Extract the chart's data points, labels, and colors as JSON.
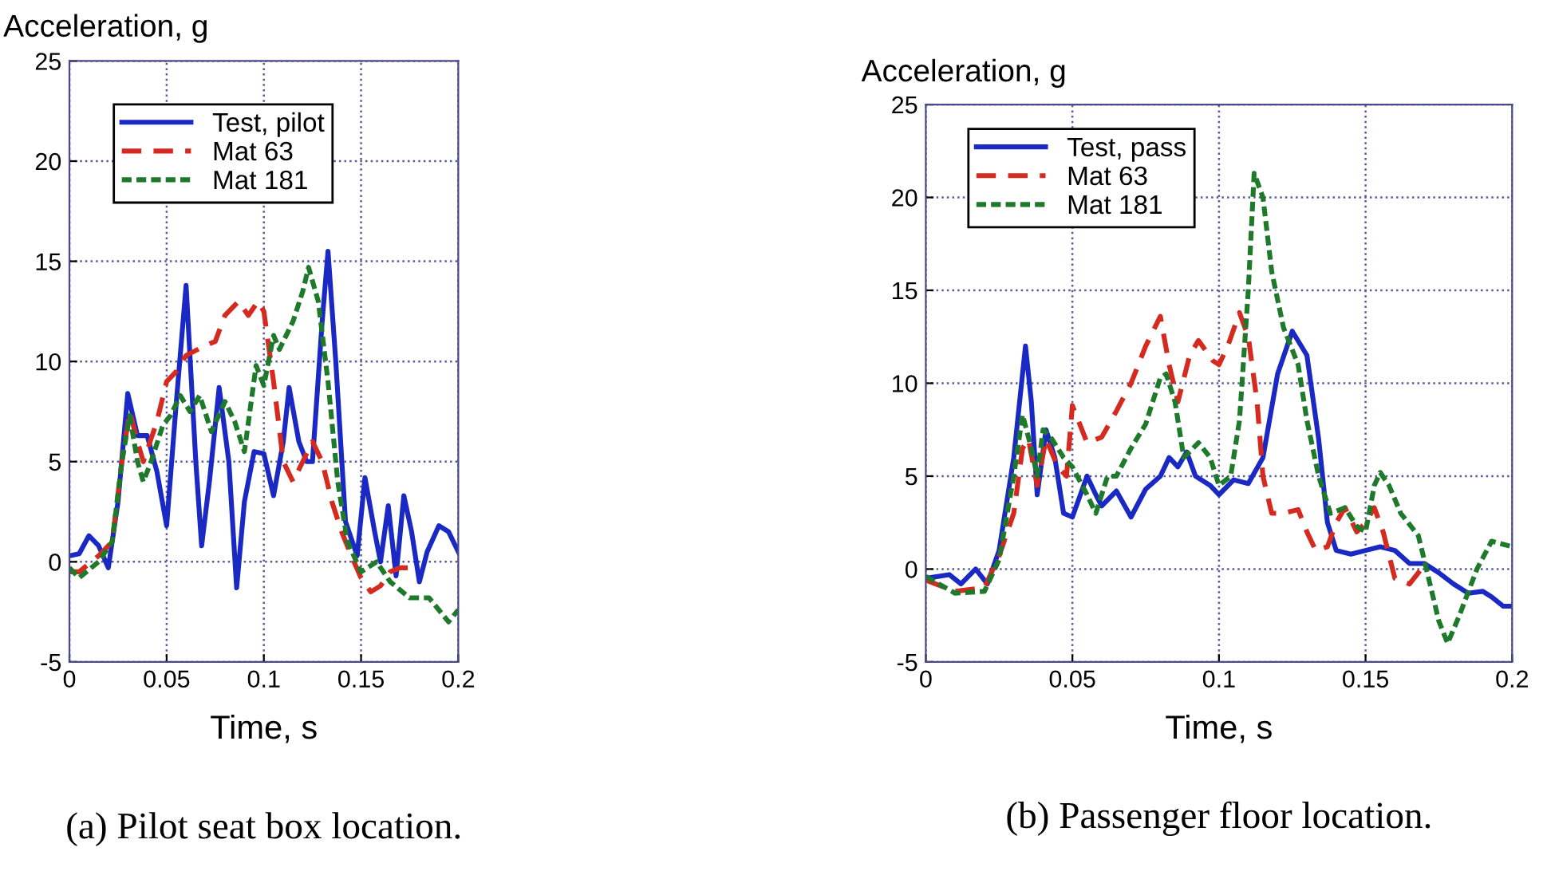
{
  "chart_data": [
    {
      "type": "line",
      "ylabel": "Acceleration, g",
      "xlabel": "Time, s",
      "annotations": [
        "(a) Pilot seat box location."
      ],
      "xlim": [
        0,
        0.2
      ],
      "ylim": [
        -5,
        25
      ],
      "xticks": [
        0,
        0.05,
        0.1,
        0.15,
        0.2
      ],
      "yticks": [
        -5,
        0,
        5,
        10,
        15,
        20,
        25
      ],
      "grid": true,
      "legend": "top left",
      "series": [
        {
          "name": "Test, pilot",
          "color": "#1a29c4",
          "line_style": "solid",
          "x": [
            0,
            0.005,
            0.01,
            0.015,
            0.02,
            0.025,
            0.03,
            0.035,
            0.04,
            0.045,
            0.05,
            0.055,
            0.06,
            0.065,
            0.068,
            0.072,
            0.077,
            0.082,
            0.086,
            0.09,
            0.095,
            0.1,
            0.105,
            0.11,
            0.113,
            0.118,
            0.122,
            0.125,
            0.13,
            0.133,
            0.137,
            0.142,
            0.148,
            0.152,
            0.157,
            0.16,
            0.164,
            0.168,
            0.172,
            0.176,
            0.18,
            0.184,
            0.19,
            0.195,
            0.2
          ],
          "values": [
            0.3,
            0.4,
            1.3,
            0.8,
            -0.3,
            3,
            8.4,
            6.3,
            6.3,
            4.5,
            1.8,
            8,
            13.8,
            5,
            0.8,
            4,
            8.7,
            5,
            -1.3,
            3,
            5.5,
            5.4,
            3.3,
            6,
            8.7,
            6,
            5,
            5,
            12,
            15.5,
            10,
            2,
            0.3,
            4.2,
            1.5,
            0,
            2.8,
            -0.7,
            3.3,
            1.5,
            -1,
            0.5,
            1.8,
            1.5,
            0.5
          ]
        },
        {
          "name": "Mat 63",
          "color": "#d42a1f",
          "line_style": "dashed",
          "x": [
            0,
            0.005,
            0.015,
            0.022,
            0.027,
            0.031,
            0.035,
            0.038,
            0.045,
            0.05,
            0.055,
            0.06,
            0.07,
            0.075,
            0.08,
            0.087,
            0.092,
            0.097,
            0.1,
            0.105,
            0.11,
            0.115,
            0.12,
            0.125,
            0.13,
            0.135,
            0.14,
            0.145,
            0.15,
            0.155,
            0.16,
            0.165,
            0.17,
            0.175
          ],
          "values": [
            -0.5,
            -0.5,
            0.3,
            1,
            5,
            7.5,
            6,
            5,
            7,
            9,
            9.5,
            10.3,
            10.8,
            11,
            12.3,
            13,
            12.3,
            13,
            12.5,
            9,
            5,
            4,
            5,
            6,
            5,
            3,
            1.5,
            0.3,
            -0.8,
            -1.5,
            -1.2,
            -0.5,
            -0.3,
            -0.3
          ]
        },
        {
          "name": "Mat 181",
          "color": "#1e7a2a",
          "line_style": "dotted",
          "x": [
            0,
            0.005,
            0.015,
            0.022,
            0.027,
            0.031,
            0.035,
            0.038,
            0.042,
            0.048,
            0.052,
            0.057,
            0.062,
            0.067,
            0.073,
            0.08,
            0.085,
            0.09,
            0.096,
            0.1,
            0.105,
            0.108,
            0.115,
            0.12,
            0.123,
            0.128,
            0.133,
            0.138,
            0.143,
            0.15,
            0.158,
            0.165,
            0.175,
            0.185,
            0.195,
            0.2
          ],
          "values": [
            -0.3,
            -0.8,
            0,
            1,
            5,
            7.3,
            5,
            4,
            5,
            6.8,
            7.3,
            8.3,
            7.5,
            8.3,
            6.5,
            8,
            7,
            5.5,
            9.8,
            8.8,
            11.3,
            10.6,
            12,
            13.5,
            14.7,
            13,
            9,
            4,
            1,
            -0.5,
            0,
            -1,
            -1.8,
            -1.8,
            -3,
            -2.4
          ]
        }
      ]
    },
    {
      "type": "line",
      "ylabel": "Acceleration, g",
      "xlabel": "Time, s",
      "annotations": [
        "(b) Passenger floor location."
      ],
      "xlim": [
        0,
        0.2
      ],
      "ylim": [
        -5,
        25
      ],
      "xticks": [
        0,
        0.05,
        0.1,
        0.15,
        0.2
      ],
      "yticks": [
        -5,
        0,
        5,
        10,
        15,
        20,
        25
      ],
      "grid": true,
      "legend": "top left",
      "series": [
        {
          "name": "Test, pass",
          "color": "#1a29c4",
          "line_style": "solid",
          "x": [
            0,
            0.008,
            0.012,
            0.017,
            0.021,
            0.025,
            0.03,
            0.034,
            0.036,
            0.038,
            0.041,
            0.044,
            0.047,
            0.05,
            0.055,
            0.058,
            0.06,
            0.065,
            0.07,
            0.075,
            0.08,
            0.083,
            0.086,
            0.089,
            0.092,
            0.097,
            0.1,
            0.105,
            0.11,
            0.115,
            0.12,
            0.125,
            0.13,
            0.134,
            0.137,
            0.14,
            0.145,
            0.15,
            0.155,
            0.16,
            0.165,
            0.17,
            0.175,
            0.18,
            0.185,
            0.19,
            0.193,
            0.197,
            0.2
          ],
          "values": [
            -0.5,
            -0.3,
            -0.8,
            0,
            -0.8,
            1,
            6,
            12,
            9,
            4,
            7.5,
            6,
            3,
            2.8,
            5,
            4,
            3.4,
            4.2,
            2.8,
            4.3,
            5,
            6,
            5.5,
            6.3,
            5,
            4.5,
            4,
            4.8,
            4.6,
            6,
            10.5,
            12.8,
            11.5,
            7,
            2.5,
            1,
            0.8,
            1,
            1.2,
            1,
            0.3,
            0.3,
            -0.2,
            -0.8,
            -1.3,
            -1.2,
            -1.5,
            -2,
            -2
          ]
        },
        {
          "name": "Mat 63",
          "color": "#d42a1f",
          "line_style": "dashed",
          "x": [
            0,
            0.01,
            0.02,
            0.025,
            0.03,
            0.033,
            0.035,
            0.038,
            0.041,
            0.045,
            0.048,
            0.05,
            0.055,
            0.06,
            0.065,
            0.07,
            0.075,
            0.08,
            0.083,
            0.086,
            0.09,
            0.093,
            0.098,
            0.1,
            0.103,
            0.107,
            0.11,
            0.113,
            0.115,
            0.118,
            0.122,
            0.127,
            0.13,
            0.133,
            0.137,
            0.14,
            0.143,
            0.147,
            0.15,
            0.153,
            0.156,
            0.16,
            0.165,
            0.17
          ],
          "values": [
            -0.6,
            -1.2,
            -1,
            0.7,
            3,
            6.5,
            7,
            4.5,
            7,
            5.5,
            5,
            8.8,
            6.8,
            7.1,
            8.5,
            10,
            12,
            13.6,
            11,
            9,
            11.5,
            12.3,
            11.2,
            11,
            12,
            13.8,
            12.5,
            9,
            5,
            3,
            3,
            3.2,
            2,
            1,
            1.2,
            2.5,
            3.3,
            2,
            2.5,
            3.3,
            2,
            -0.5,
            -0.8,
            0.2
          ]
        },
        {
          "name": "Mat 181",
          "color": "#1e7a2a",
          "line_style": "dotted",
          "x": [
            0,
            0.01,
            0.02,
            0.025,
            0.03,
            0.033,
            0.036,
            0.038,
            0.04,
            0.043,
            0.047,
            0.05,
            0.055,
            0.058,
            0.062,
            0.065,
            0.07,
            0.075,
            0.08,
            0.082,
            0.085,
            0.088,
            0.093,
            0.097,
            0.1,
            0.104,
            0.107,
            0.11,
            0.112,
            0.115,
            0.118,
            0.122,
            0.127,
            0.13,
            0.134,
            0.138,
            0.143,
            0.147,
            0.15,
            0.153,
            0.155,
            0.158,
            0.162,
            0.168,
            0.17,
            0.175,
            0.178,
            0.182,
            0.188,
            0.193,
            0.2
          ],
          "values": [
            -0.4,
            -1.3,
            -1.2,
            0.5,
            5,
            8.3,
            6.5,
            5,
            7.5,
            7,
            6,
            5.5,
            4,
            3,
            5,
            5,
            6.5,
            7.8,
            10.3,
            10.5,
            9,
            6,
            6.8,
            6,
            4.5,
            5,
            8,
            15,
            21.3,
            20,
            16,
            13,
            11,
            8,
            5,
            3,
            3.3,
            2.3,
            2,
            4.5,
            5.2,
            4.5,
            3,
            1.8,
            0.5,
            -2.8,
            -4,
            -2.5,
            0,
            1.5,
            1.2
          ]
        }
      ]
    }
  ]
}
